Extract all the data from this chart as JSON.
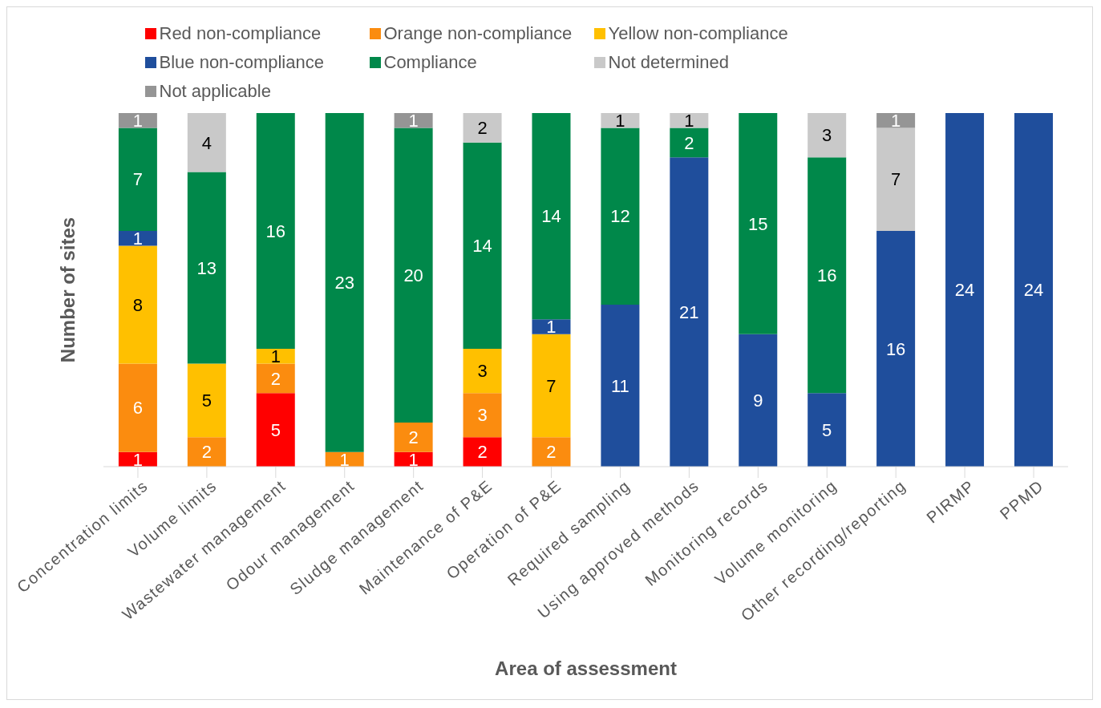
{
  "chart_data": {
    "type": "bar",
    "stacked": true,
    "xlabel": "Area of assessment",
    "ylabel": "Number of sites",
    "legend": "top",
    "data_labels": true,
    "tick_labels": "x",
    "categories": [
      "Concentration limits",
      "Volume limits",
      "Wastewater management",
      "Odour management",
      "Sludge management",
      "Maintenance of P&E",
      "Operation of P&E",
      "Required sampling",
      "Using approved methods",
      "Monitoring records",
      "Volume monitoring",
      "Other recording/reporting",
      "PIRMP",
      "PPMD"
    ],
    "series": [
      {
        "name": "Red non-compliance",
        "color": "#ff0000",
        "values": [
          1,
          null,
          5,
          null,
          1,
          2,
          null,
          null,
          null,
          null,
          null,
          null,
          null,
          null
        ]
      },
      {
        "name": "Orange non-compliance",
        "color": "#fb8c0f",
        "values": [
          6,
          2,
          2,
          1,
          2,
          3,
          2,
          null,
          null,
          null,
          null,
          null,
          null,
          null
        ]
      },
      {
        "name": "Yellow non-compliance",
        "color": "#ffc000",
        "values": [
          8,
          5,
          1,
          null,
          null,
          3,
          7,
          null,
          null,
          null,
          null,
          null,
          null,
          null
        ]
      },
      {
        "name": "Blue non-compliance",
        "color": "#1f4e9c",
        "values": [
          1,
          null,
          null,
          null,
          null,
          null,
          1,
          11,
          21,
          9,
          5,
          16,
          24,
          24
        ]
      },
      {
        "name": "Compliance",
        "color": "#00884a",
        "values": [
          7,
          13,
          16,
          23,
          20,
          14,
          14,
          12,
          2,
          15,
          16,
          null,
          null,
          null
        ]
      },
      {
        "name": "Not determined",
        "color": "#c9c9c9",
        "values": [
          null,
          4,
          null,
          null,
          null,
          2,
          null,
          1,
          1,
          null,
          3,
          7,
          null,
          null
        ]
      },
      {
        "name": "Not applicable",
        "color": "#959595",
        "values": [
          1,
          null,
          null,
          null,
          1,
          null,
          null,
          null,
          null,
          null,
          null,
          1,
          null,
          null
        ]
      }
    ]
  }
}
